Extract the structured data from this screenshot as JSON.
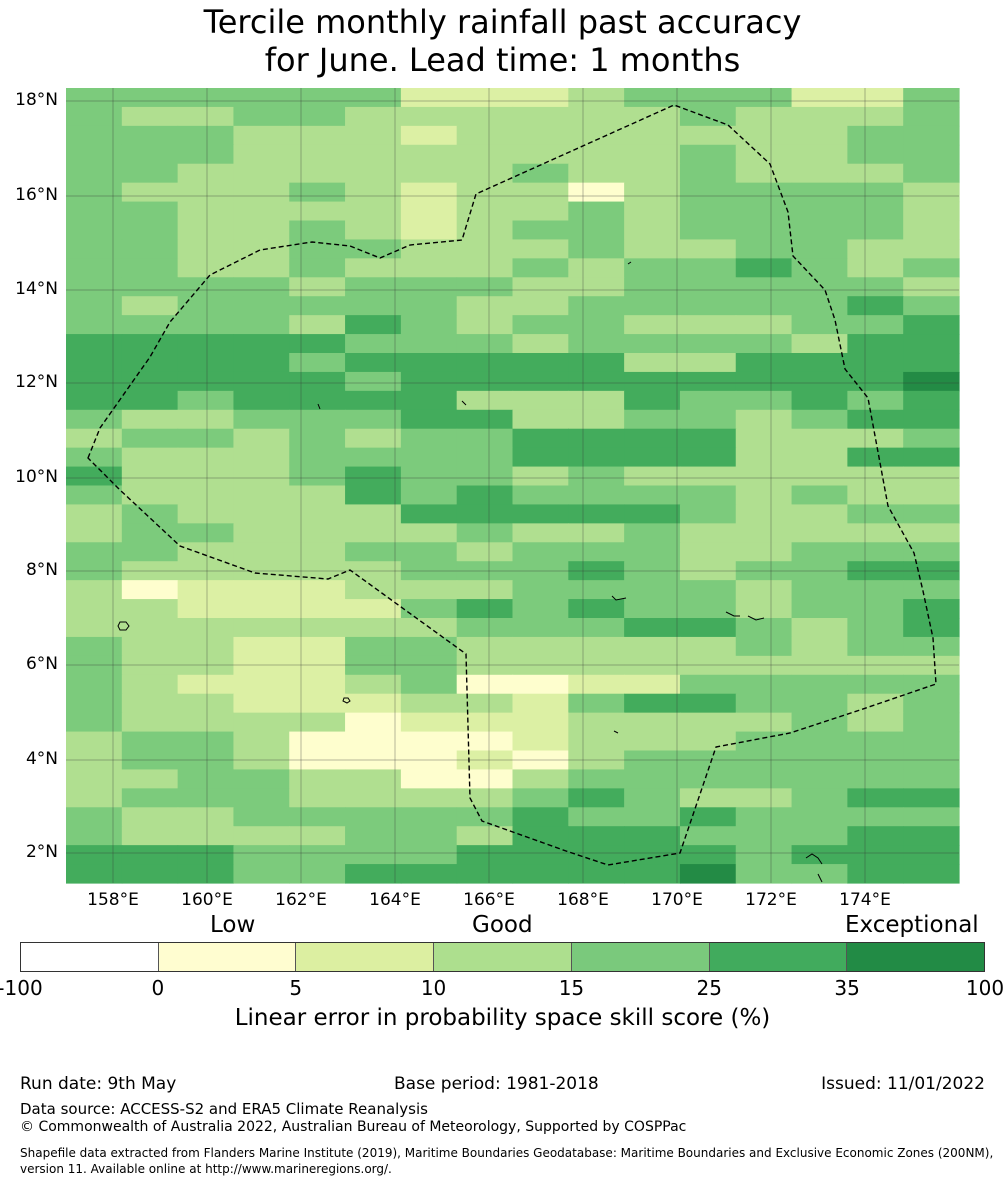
{
  "title": {
    "line1": "Tercile monthly rainfall past accuracy",
    "line2": "for June. Lead time: 1 months"
  },
  "map": {
    "y_ticks": [
      "18°N",
      "16°N",
      "14°N",
      "12°N",
      "10°N",
      "8°N",
      "6°N",
      "4°N",
      "2°N"
    ],
    "x_ticks": [
      "158°E",
      "160°E",
      "162°E",
      "164°E",
      "166°E",
      "168°E",
      "170°E",
      "172°E",
      "174°E"
    ],
    "grid_rows": [
      "cc3ccc1112333113",
      "c2bccbbbbbbcbb23",
      "cccbbb1bbbbbbbcc",
      "cccbbbbbbbbcbbcc",
      "ccbbbbbbcbbcbbbc",
      "c2bbcb1bb0bccccb",
      "ccbbbb1bbcbccccb",
      "ccbbcb1bccbccccb",
      "ccbbccbbbcbbccbb",
      "ccbbcbbbcbccdcbc",
      "ccccbcccbbcccccb",
      "cbcccccbbcccccdc",
      "ccccbdcbccbbbccd",
      "dddddcccbccccbdd",
      "ddddcdddddbbdddd",
      "dddddcddddddddde",
      "ddcddddbbbdccdcd",
      "cbbcccddbbccbcdd",
      "bccbcbccddddbbbc",
      "cbbbccccddddbbdd",
      "dbbbcdccbcbbbbbb",
      "cbbbbdcdccccbcbb",
      "bcbbbbdddddcbbcc",
      "bccbbbbcbbcbbbbb",
      "ccbbbccbcccbbccc",
      "cbbbbbcccdcbccdd",
      "b0111bbbccccbccc",
      "bb1111cdcdccbccd",
      "bbbbbbbcccddcbcd",
      "cbb11ccbbbbbcbcc",
      "cbb11ccbbbbbbbbb",
      "cb111bc0011ccccc",
      "cbb111bb1cddccbc",
      "cbbbb0111bbbbcbc",
      "bccb00001bbbcccc",
      "bccb00010bcccccc",
      "bbccbb00bccccccc",
      "bcccbbbbcdcbbcdd",
      "cbbcccccdccdcccc",
      "cbbbbccbdddcccdd",
      "dddccccdddddcddd",
      "dddccddddddeccdd"
    ],
    "palette": {
      "0": "#fefece",
      "1": "#dcf0a4",
      "2": "#b0df90",
      "3": "#7ccb7c",
      "b": "#b0df90",
      "c": "#7ccb7c",
      "d": "#43ac5c",
      "e": "#238b45"
    }
  },
  "legend": {
    "categories": [
      "Low",
      "Good",
      "Exceptional"
    ],
    "colors": [
      "#ffffff",
      "#fffdd0",
      "#dcefa1",
      "#addf8e",
      "#7ac97c",
      "#41ab5d",
      "#228b45"
    ],
    "ticks": [
      "-100",
      "0",
      "5",
      "10",
      "15",
      "25",
      "35",
      "100"
    ],
    "label": "Linear error in probability space skill score (%)"
  },
  "footer": {
    "run_date": "Run date: 9th May",
    "base_period": "Base period: 1981-2018",
    "issued": "Issued: 11/01/2022",
    "data_source": "Data source: ACCESS-S2 and ERA5 Climate Reanalysis",
    "copyright": "© Commonwealth of Australia 2022, Australian Bureau of Meteorology, Supported by COSPPac",
    "shapefile_line1": "Shapefile data extracted from Flanders Marine Institute (2019), Maritime Boundaries Geodatabase: Maritime Boundaries and Exclusive Economic Zones (200NM),",
    "shapefile_line2": "version 11. Available online at http://www.marineregions.org/."
  }
}
